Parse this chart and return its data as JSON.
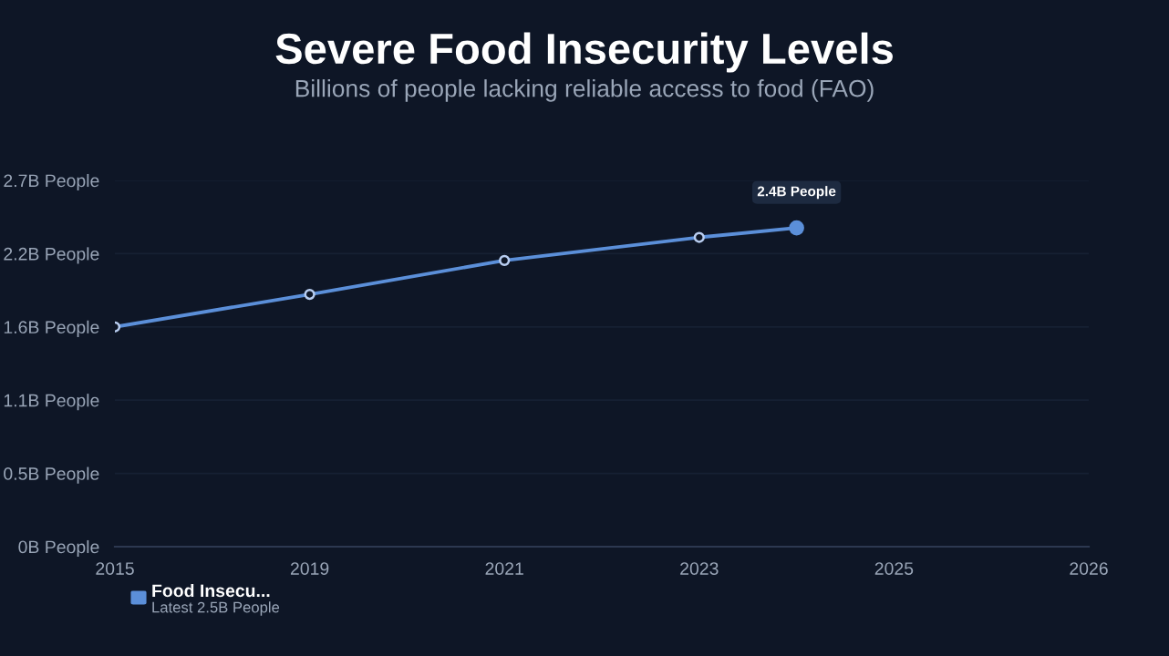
{
  "chart_data": {
    "type": "line",
    "title": "Severe Food Insecurity Levels",
    "subtitle": "Billions of people lacking reliable access to food (FAO)",
    "categories": [
      "2015",
      null,
      "2019",
      null,
      "2021",
      null,
      "2023",
      null,
      "2025",
      null,
      "2026"
    ],
    "series": [
      {
        "name": "Food Insecu...",
        "color": "#5b8fd9",
        "values": [
          1.62,
          null,
          1.86,
          null,
          2.11,
          null,
          2.28,
          2.35,
          null,
          null,
          null
        ],
        "value_labels": [
          null,
          null,
          null,
          null,
          null,
          null,
          null,
          "2.4B People",
          null,
          null,
          null
        ]
      }
    ],
    "ylim": [
      0,
      2.7
    ],
    "yticks": [
      {
        "value": 0,
        "label": "0B People"
      },
      {
        "value": 0.54,
        "label": "0.5B People"
      },
      {
        "value": 1.08,
        "label": "1.1B People"
      },
      {
        "value": 1.62,
        "label": "1.6B People"
      },
      {
        "value": 2.16,
        "label": "2.2B People"
      },
      {
        "value": 2.7,
        "label": "2.7B People"
      }
    ],
    "annotations": [
      "Latest 2.5B People"
    ],
    "grid": "y",
    "legend": "bottom left",
    "marker": "circle",
    "line_style": "solid"
  }
}
